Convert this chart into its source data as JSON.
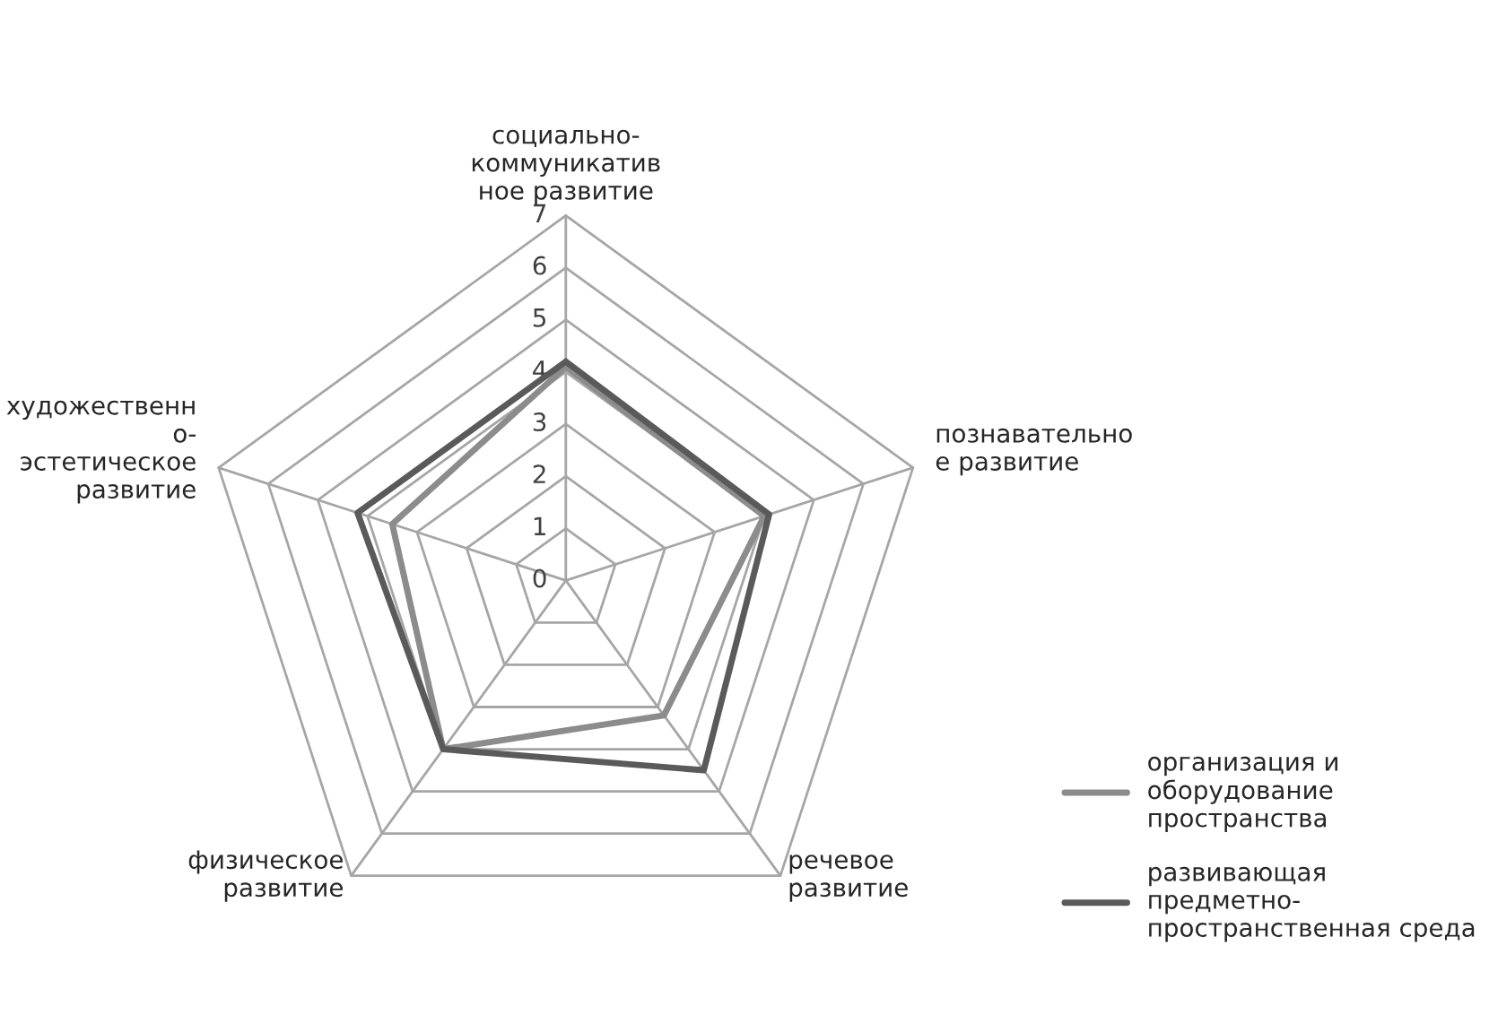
{
  "chart_data": {
    "type": "radar",
    "categories": [
      "социально-\nкоммуникатив\nное развитие",
      "познавательно\nе развитие",
      "речевое\nразвитие",
      "физическое\nразвитие",
      "художественн\nо-\nэстетическое\nразвитие"
    ],
    "series": [
      {
        "name": "организация и\nоборудование\nпространства",
        "color": "#8c8c8c",
        "values": [
          4.1,
          4.0,
          3.2,
          4.0,
          3.5
        ]
      },
      {
        "name": "развивающая\nпредметно-\nпространственная среда",
        "color": "#5a5a5a",
        "values": [
          4.2,
          4.1,
          4.5,
          4.0,
          4.2
        ]
      }
    ],
    "ylim": [
      0,
      7
    ],
    "yticks": [
      0,
      1,
      2,
      3,
      4,
      5,
      6,
      7
    ],
    "grid": true,
    "legend": "right"
  }
}
